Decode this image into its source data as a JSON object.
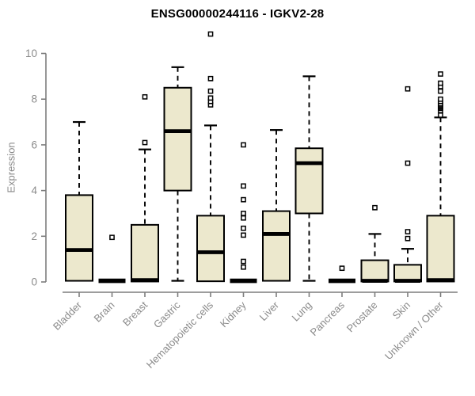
{
  "figure": {
    "background": "#ffffff"
  },
  "colors": {
    "box_fill": "#ece8cd",
    "box_stroke": "#000000",
    "median": "#000000",
    "whisker": "#000000",
    "outlier_stroke": "#000000",
    "outlier_fill": "#ffffff",
    "axis": "#7d7d7d",
    "tick_label": "#8a8a8a",
    "title": "#000000"
  },
  "chart_data": {
    "type": "box",
    "title": "ENSG00000244116 - IGKV2-28",
    "ylabel": "Expression",
    "xlabel": "",
    "ylim": [
      0,
      11
    ],
    "yticks": [
      0,
      2,
      4,
      6,
      8,
      10
    ],
    "grid": false,
    "legend": null,
    "categories": [
      "Bladder",
      "Brain",
      "Breast",
      "Gastric",
      "Hematopoietic cells",
      "Kidney",
      "Liver",
      "Lung",
      "Pancreas",
      "Prostate",
      "Skin",
      "Unknown / Other"
    ],
    "series": [
      {
        "name": "Bladder",
        "whisker_low": 0.05,
        "q1": 0.05,
        "median": 1.4,
        "q3": 3.8,
        "whisker_high": 7.0,
        "outliers": []
      },
      {
        "name": "Brain",
        "whisker_low": 0.05,
        "q1": 0.05,
        "median": 0.05,
        "q3": 0.05,
        "whisker_high": 0.05,
        "outliers": [
          1.95
        ]
      },
      {
        "name": "Breast",
        "whisker_low": 0.02,
        "q1": 0.02,
        "median": 0.08,
        "q3": 2.5,
        "whisker_high": 5.8,
        "outliers": [
          6.1,
          8.1
        ]
      },
      {
        "name": "Gastric",
        "whisker_low": 0.05,
        "q1": 4.0,
        "median": 6.6,
        "q3": 8.5,
        "whisker_high": 9.4,
        "outliers": []
      },
      {
        "name": "Hematopoietic cells",
        "whisker_low": 0.03,
        "q1": 0.03,
        "median": 1.3,
        "q3": 2.9,
        "whisker_high": 6.85,
        "outliers": [
          7.75,
          7.9,
          8.05,
          8.35,
          8.9,
          10.85
        ]
      },
      {
        "name": "Kidney",
        "whisker_low": 0.05,
        "q1": 0.05,
        "median": 0.05,
        "q3": 0.05,
        "whisker_high": 0.05,
        "outliers": [
          0.65,
          0.9,
          2.05,
          2.35,
          2.8,
          3.0,
          3.6,
          4.2,
          6.0
        ]
      },
      {
        "name": "Liver",
        "whisker_low": 0.05,
        "q1": 0.05,
        "median": 2.1,
        "q3": 3.1,
        "whisker_high": 6.65,
        "outliers": []
      },
      {
        "name": "Lung",
        "whisker_low": 0.05,
        "q1": 3.0,
        "median": 5.2,
        "q3": 5.85,
        "whisker_high": 9.0,
        "outliers": []
      },
      {
        "name": "Pancreas",
        "whisker_low": 0.05,
        "q1": 0.05,
        "median": 0.05,
        "q3": 0.05,
        "whisker_high": 0.05,
        "outliers": [
          0.6
        ]
      },
      {
        "name": "Prostate",
        "whisker_low": 0.02,
        "q1": 0.02,
        "median": 0.05,
        "q3": 0.95,
        "whisker_high": 2.1,
        "outliers": [
          3.25
        ]
      },
      {
        "name": "Skin",
        "whisker_low": 0.02,
        "q1": 0.02,
        "median": 0.05,
        "q3": 0.75,
        "whisker_high": 1.45,
        "outliers": [
          1.9,
          2.2,
          5.2,
          8.45
        ]
      },
      {
        "name": "Unknown / Other",
        "whisker_low": 0.02,
        "q1": 0.02,
        "median": 0.08,
        "q3": 2.9,
        "whisker_high": 7.2,
        "outliers": [
          7.3,
          7.5,
          7.6,
          7.65,
          7.7,
          7.75,
          7.8,
          7.9,
          8.0,
          8.35,
          8.55,
          8.7,
          9.1
        ]
      }
    ]
  }
}
